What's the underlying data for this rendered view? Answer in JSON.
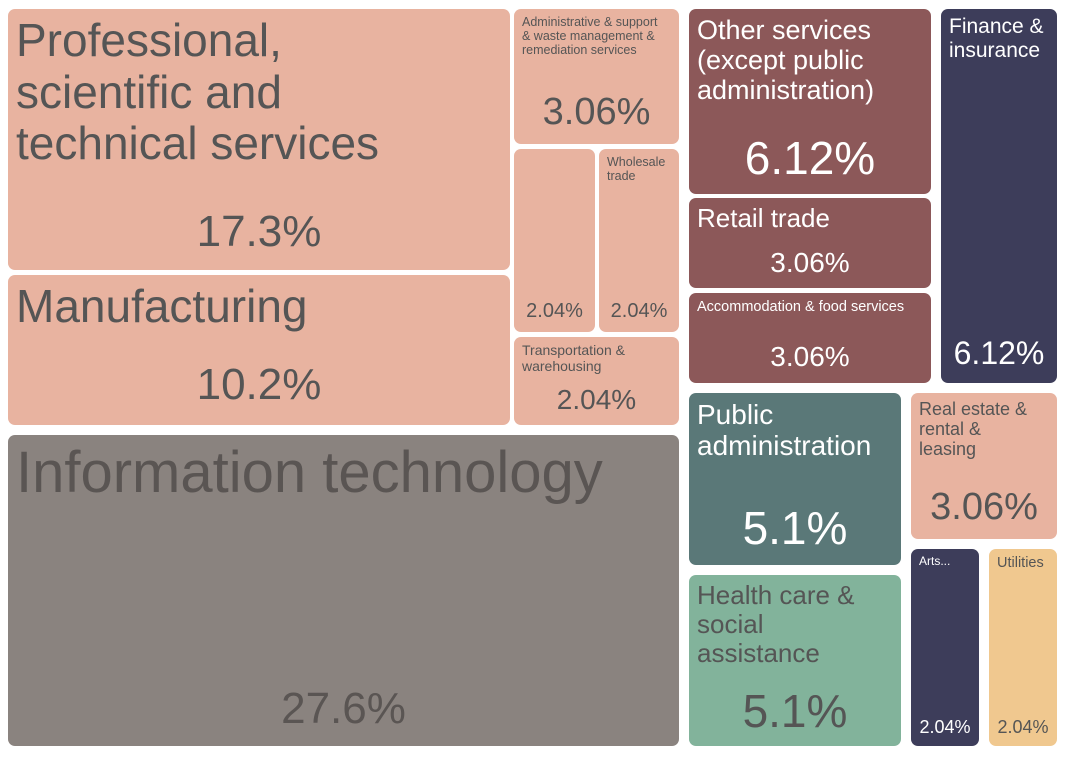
{
  "chart_data": {
    "type": "treemap",
    "title": "",
    "value_unit": "%",
    "nodes": [
      {
        "label": "Professional,\nscientific and\ntechnical services",
        "value": 17.3,
        "display": "17.3%",
        "color": "#e8b3a0"
      },
      {
        "label": "Manufacturing",
        "value": 10.2,
        "display": "10.2%",
        "color": "#e8b3a0"
      },
      {
        "label": "Information technology",
        "value": 27.6,
        "display": "27.6%",
        "color": "#8a837f"
      },
      {
        "label": "Administrative & support\n& waste management &\nremediation services",
        "value": 3.06,
        "display": "3.06%",
        "color": "#e8b3a0"
      },
      {
        "label": "",
        "value": 2.04,
        "display": "2.04%",
        "color": "#e8b3a0"
      },
      {
        "label": "Wholesale\ntrade",
        "value": 2.04,
        "display": "2.04%",
        "color": "#e8b3a0"
      },
      {
        "label": "Transportation &\nwarehousing",
        "value": 2.04,
        "display": "2.04%",
        "color": "#e8b3a0"
      },
      {
        "label": "Other services\n(except public\nadministration)",
        "value": 6.12,
        "display": "6.12%",
        "color": "#8c5859"
      },
      {
        "label": "Retail trade",
        "value": 3.06,
        "display": "3.06%",
        "color": "#8c5859"
      },
      {
        "label": "Accommodation & food services",
        "value": 3.06,
        "display": "3.06%",
        "color": "#8c5859"
      },
      {
        "label": "Finance &\ninsurance",
        "value": 6.12,
        "display": "6.12%",
        "color": "#3d3d5a"
      },
      {
        "label": "Public\nadministration",
        "value": 5.1,
        "display": "5.1%",
        "color": "#5a7878"
      },
      {
        "label": "Health care &\nsocial\nassistance",
        "value": 5.1,
        "display": "5.1%",
        "color": "#82b39b"
      },
      {
        "label": "Real estate &\nrental &\nleasing",
        "value": 3.06,
        "display": "3.06%",
        "color": "#e8b3a0"
      },
      {
        "label": "Arts...",
        "value": 2.04,
        "display": "2.04%",
        "color": "#3d3d5a"
      },
      {
        "label": "Utilities",
        "value": 2.04,
        "display": "2.04%",
        "color": "#f0c88f"
      }
    ]
  }
}
